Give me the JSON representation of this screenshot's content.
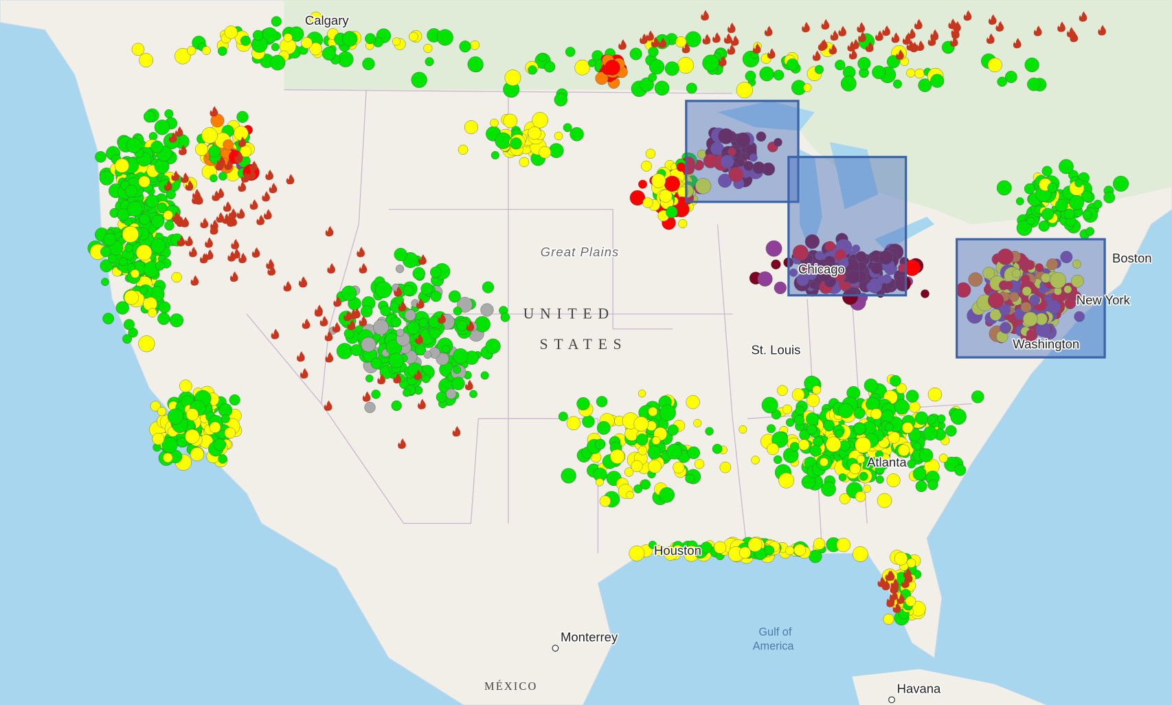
{
  "map_labels": [
    "Calgary",
    "Great Plains",
    "UNITED",
    "STATES",
    "Chicago",
    "St. Louis",
    "Boston",
    "New York",
    "Washington",
    "Atlanta",
    "Houston",
    "Monterrey",
    "Gulf of",
    "America",
    "Havana",
    "MÉXICO"
  ]
}
